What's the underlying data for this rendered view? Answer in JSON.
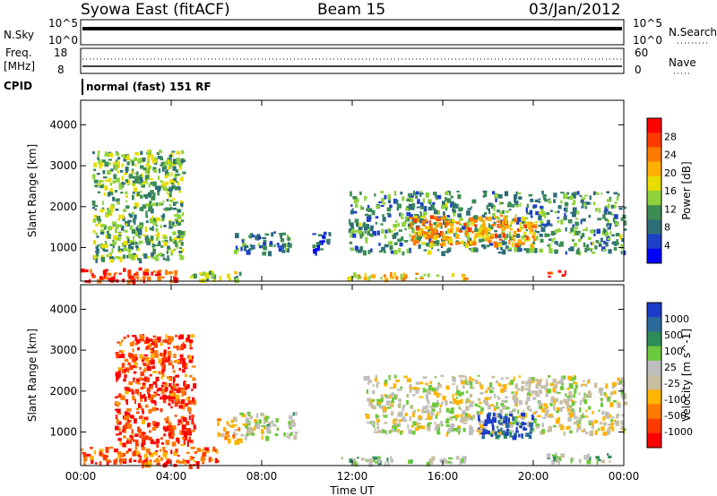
{
  "header": {
    "station": "Syowa East (fitACF)",
    "beam": "Beam 15",
    "date": "03/Jan/2012"
  },
  "status_panel": {
    "nsky_label": "N.Sky",
    "nsky_ticks": [
      "10^5",
      "10^0"
    ],
    "nsearch_label": "N.Search",
    "nsearch_ticks": [
      "10^5",
      "10^0"
    ],
    "freq_label": "Freq.",
    "freq_unit": "[MHz]",
    "freq_ticks": [
      "18",
      "8"
    ],
    "nave_label": "Nave",
    "nave_ticks": [
      "60",
      "0"
    ],
    "cpid_label": "CPID",
    "cpid_value": "normal (fast) 151 RF"
  },
  "power_colorbar": {
    "label": "Power [dB]",
    "ticks": [
      "28",
      "24",
      "20",
      "16",
      "12",
      "8",
      "4"
    ],
    "colors": [
      "#ff0000",
      "#ff3a00",
      "#ff7a00",
      "#ffb000",
      "#e8dc00",
      "#8fd23c",
      "#3c8c54",
      "#2e6e78",
      "#1c40c8",
      "#0000ff"
    ]
  },
  "velocity_colorbar": {
    "label": "Velocity [m s^-1]",
    "ticks": [
      "1000",
      "500",
      "100",
      "25",
      "-25",
      "-100",
      "-500",
      "-1000"
    ],
    "colors": [
      "#1c3cc8",
      "#2a6a9c",
      "#2e8c58",
      "#6cc83c",
      "#bebebe",
      "#c8bea0",
      "#ffb400",
      "#ff7a00",
      "#ff3a00",
      "#ff0000"
    ]
  },
  "axes": {
    "ylabel": "Slant Range [km]",
    "xlabel": "Time UT",
    "yticks": [
      "1000",
      "2000",
      "3000",
      "4000"
    ],
    "xticks": [
      "00:00",
      "04:00",
      "08:00",
      "12:00",
      "16:00",
      "20:00",
      "00:00"
    ]
  },
  "chart_data": [
    {
      "type": "heatmap",
      "title": "Power",
      "ylabel": "Slant Range [km]",
      "xlabel": "Time UT",
      "x_range_hours": [
        0,
        24
      ],
      "ylim_km": [
        180,
        4600
      ],
      "colorbar_range_db": [
        0,
        30
      ],
      "echo_regions": [
        {
          "t": [
            0.0,
            4.2
          ],
          "km": [
            200,
            520
          ],
          "value": 26
        },
        {
          "t": [
            0.5,
            4.5
          ],
          "km": [
            700,
            3400
          ],
          "value": 12
        },
        {
          "t": [
            4.8,
            7.0
          ],
          "km": [
            220,
            450
          ],
          "value": 14
        },
        {
          "t": [
            6.7,
            9.2
          ],
          "km": [
            900,
            1400
          ],
          "value": 8
        },
        {
          "t": [
            10.2,
            11.0
          ],
          "km": [
            900,
            1400
          ],
          "value": 6
        },
        {
          "t": [
            11.5,
            17.0
          ],
          "km": [
            260,
            400
          ],
          "value": 18
        },
        {
          "t": [
            11.8,
            24.0
          ],
          "km": [
            900,
            2400
          ],
          "value": 10
        },
        {
          "t": [
            14.5,
            20.0
          ],
          "km": [
            1100,
            1800
          ],
          "value": 20
        },
        {
          "t": [
            20.5,
            21.5
          ],
          "km": [
            300,
            450
          ],
          "value": 26
        }
      ]
    },
    {
      "type": "heatmap",
      "title": "Velocity",
      "ylabel": "Slant Range [km]",
      "xlabel": "Time UT",
      "x_range_hours": [
        0,
        24
      ],
      "ylim_km": [
        180,
        4600
      ],
      "colorbar_range_ms": [
        -1000,
        1000
      ],
      "echo_regions": [
        {
          "t": [
            0.0,
            6.0
          ],
          "km": [
            200,
            650
          ],
          "value": -600
        },
        {
          "t": [
            1.5,
            5.0
          ],
          "km": [
            700,
            3400
          ],
          "value": -700
        },
        {
          "t": [
            6.0,
            7.0
          ],
          "km": [
            800,
            1400
          ],
          "value": -300
        },
        {
          "t": [
            7.0,
            9.5
          ],
          "km": [
            900,
            1500
          ],
          "value": 80
        },
        {
          "t": [
            11.5,
            17.0
          ],
          "km": [
            260,
            420
          ],
          "value": 150
        },
        {
          "t": [
            12.5,
            24.0
          ],
          "km": [
            1000,
            2400
          ],
          "value": 0
        },
        {
          "t": [
            17.5,
            20.0
          ],
          "km": [
            900,
            1500
          ],
          "value": 900
        },
        {
          "t": [
            20.5,
            23.5
          ],
          "km": [
            300,
            500
          ],
          "value": 200
        }
      ]
    }
  ]
}
